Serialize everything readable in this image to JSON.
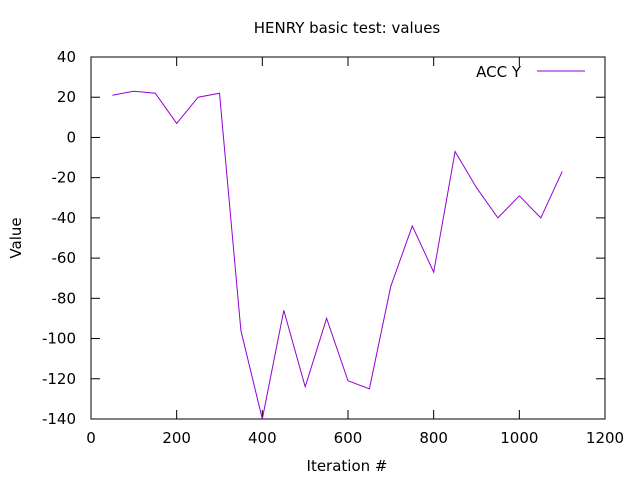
{
  "chart_data": {
    "type": "line",
    "title": "HENRY basic test: values",
    "xlabel": "Iteration #",
    "ylabel": "Value",
    "xlim": [
      0,
      1200
    ],
    "ylim": [
      -140,
      40
    ],
    "x_ticks": [
      0,
      200,
      400,
      600,
      800,
      1000,
      1200
    ],
    "y_ticks": [
      40,
      20,
      0,
      -20,
      -40,
      -60,
      -80,
      -100,
      -120,
      -140
    ],
    "grid": false,
    "legend_position": "top-right",
    "series": [
      {
        "name": "ACC Y",
        "color": "#9400d3",
        "x": [
          50,
          100,
          150,
          200,
          250,
          300,
          350,
          400,
          450,
          500,
          550,
          600,
          650,
          700,
          750,
          800,
          850,
          900,
          950,
          1000,
          1050,
          1100
        ],
        "y": [
          21,
          23,
          22,
          7,
          20,
          22,
          -96,
          -140,
          -86,
          -124,
          -90,
          -121,
          -125,
          -74,
          -44,
          -67,
          -7,
          -25,
          -40,
          -29,
          -40,
          -17
        ]
      }
    ]
  }
}
